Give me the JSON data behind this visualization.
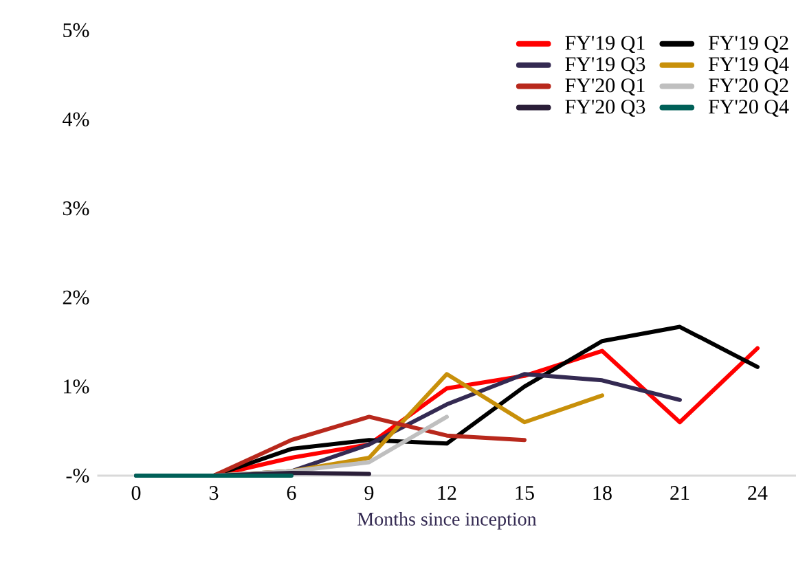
{
  "chart_data": {
    "type": "line",
    "xlabel": "Months since inception",
    "categories": [
      "0",
      "3",
      "6",
      "9",
      "12",
      "15",
      "18",
      "21",
      "24"
    ],
    "ylim": [
      0,
      5
    ],
    "yticks": [
      {
        "value": 0,
        "label": "-%"
      },
      {
        "value": 1,
        "label": "1%"
      },
      {
        "value": 2,
        "label": "2%"
      },
      {
        "value": 3,
        "label": "3%"
      },
      {
        "value": 4,
        "label": "4%"
      },
      {
        "value": 5,
        "label": "5%"
      }
    ],
    "grid": false,
    "legend": "top right",
    "marker": "none",
    "line_style": "solid",
    "series": [
      {
        "name": "FY'19 Q1",
        "color": "#ff0000",
        "values": [
          null,
          0,
          0.2,
          0.35,
          0.98,
          1.12,
          1.4,
          0.6,
          1.43
        ]
      },
      {
        "name": "FY'19 Q2",
        "color": "#000000",
        "values": [
          null,
          0,
          0.3,
          0.4,
          0.36,
          1.0,
          1.51,
          1.67,
          1.22
        ]
      },
      {
        "name": "FY'19 Q3",
        "color": "#342a52",
        "values": [
          null,
          0,
          0.05,
          0.35,
          0.8,
          1.14,
          1.07,
          0.85,
          null
        ]
      },
      {
        "name": "FY'19 Q4",
        "color": "#c8900a",
        "values": [
          null,
          0,
          0.05,
          0.2,
          1.14,
          0.6,
          0.9,
          null,
          null
        ]
      },
      {
        "name": "FY'20 Q1",
        "color": "#b8281c",
        "values": [
          null,
          0,
          0.4,
          0.66,
          0.45,
          0.4,
          null,
          null,
          null
        ]
      },
      {
        "name": "FY'20 Q2",
        "color": "#bfbfbf",
        "values": [
          null,
          0,
          0.05,
          0.15,
          0.66,
          null,
          null,
          null,
          null
        ]
      },
      {
        "name": "FY'20 Q3",
        "color": "#2a1e38",
        "values": [
          0,
          0,
          0.03,
          0.02,
          null,
          null,
          null,
          null,
          null
        ]
      },
      {
        "name": "FY'20 Q4",
        "color": "#006058",
        "values": [
          0,
          0,
          0,
          null,
          null,
          null,
          null,
          null,
          null
        ]
      }
    ]
  }
}
